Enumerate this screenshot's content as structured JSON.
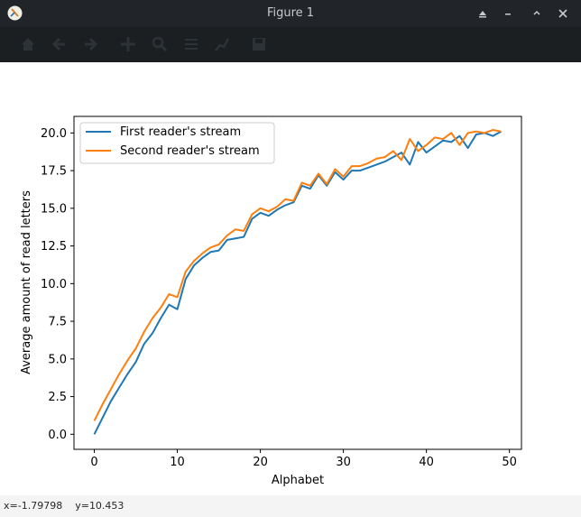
{
  "window": {
    "title": "Figure 1",
    "icons": [
      "app-icon",
      "keep-above-icon",
      "minimize-icon",
      "maximize-icon",
      "close-icon"
    ]
  },
  "toolbar": {
    "buttons": [
      "home-icon",
      "back-icon",
      "forward-icon",
      "pan-icon",
      "zoom-icon",
      "subplots-icon",
      "edit-axis-icon",
      "save-icon"
    ]
  },
  "status": {
    "x": "-1.79798",
    "y": "10.453"
  },
  "chart_data": {
    "type": "line",
    "xlabel": "Alphabet",
    "ylabel": "Average amount of read letters",
    "xlim": [
      -2.45,
      51.45
    ],
    "ylim": [
      -1.0,
      21.1
    ],
    "xticks": [
      0,
      10,
      20,
      30,
      40,
      50
    ],
    "yticks": [
      0.0,
      2.5,
      5.0,
      7.5,
      10.0,
      12.5,
      15.0,
      17.5,
      20.0
    ],
    "xtick_labels": [
      "0",
      "10",
      "20",
      "30",
      "40",
      "50"
    ],
    "ytick_labels": [
      "0.0",
      "2.5",
      "5.0",
      "7.5",
      "10.0",
      "12.5",
      "15.0",
      "17.5",
      "20.0"
    ],
    "legend_position": "top-left",
    "grid": false,
    "x": [
      0,
      1,
      2,
      3,
      4,
      5,
      6,
      7,
      8,
      9,
      10,
      11,
      12,
      13,
      14,
      15,
      16,
      17,
      18,
      19,
      20,
      21,
      22,
      23,
      24,
      25,
      26,
      27,
      28,
      29,
      30,
      31,
      32,
      33,
      34,
      35,
      36,
      37,
      38,
      39,
      40,
      41,
      42,
      43,
      44,
      45,
      46,
      47,
      48,
      49
    ],
    "series": [
      {
        "name": "First reader's stream",
        "color": "#1f77b4",
        "values": [
          0.0,
          1.1,
          2.2,
          3.1,
          4.0,
          4.8,
          6.0,
          6.7,
          7.7,
          8.6,
          8.3,
          10.3,
          11.2,
          11.7,
          12.1,
          12.2,
          12.9,
          13.0,
          13.1,
          14.3,
          14.7,
          14.5,
          14.9,
          15.2,
          15.4,
          16.5,
          16.3,
          17.2,
          16.5,
          17.4,
          16.9,
          17.5,
          17.5,
          17.7,
          17.9,
          18.1,
          18.4,
          18.7,
          17.9,
          19.4,
          18.7,
          19.1,
          19.5,
          19.4,
          19.8,
          19.0,
          19.9,
          20.0,
          19.8,
          20.1
        ]
      },
      {
        "name": "Second reader's stream",
        "color": "#ff7f0e",
        "values": [
          0.9,
          2.0,
          3.0,
          4.0,
          4.9,
          5.7,
          6.8,
          7.7,
          8.4,
          9.3,
          9.1,
          10.8,
          11.5,
          12.0,
          12.4,
          12.6,
          13.2,
          13.6,
          13.5,
          14.6,
          15.0,
          14.8,
          15.1,
          15.6,
          15.5,
          16.7,
          16.5,
          17.3,
          16.6,
          17.6,
          17.1,
          17.8,
          17.8,
          18.0,
          18.3,
          18.4,
          18.8,
          18.2,
          19.6,
          18.8,
          19.2,
          19.7,
          19.6,
          20.0,
          19.2,
          20.0,
          20.1,
          20.0,
          20.2,
          20.1
        ]
      }
    ]
  }
}
